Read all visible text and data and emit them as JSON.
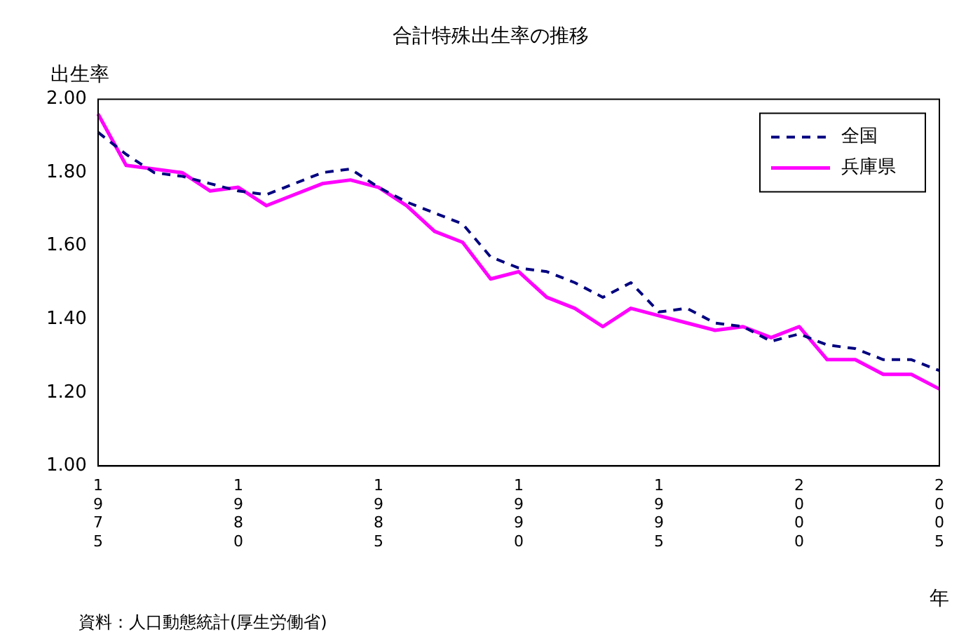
{
  "chart_data": {
    "type": "line",
    "title": "合計特殊出生率の推移",
    "ylabel": "出生率",
    "xlabel": "年",
    "categories": [
      "1975",
      null,
      null,
      null,
      null,
      "1980",
      null,
      null,
      null,
      null,
      "1985",
      null,
      null,
      null,
      null,
      "1990",
      null,
      null,
      null,
      null,
      "1995",
      null,
      null,
      null,
      null,
      "2000",
      null,
      null,
      null,
      null,
      "2005"
    ],
    "series": [
      {
        "name": "全国",
        "color": "#000080",
        "line_style": "dashed",
        "values": [
          1.91,
          1.85,
          1.8,
          1.79,
          1.77,
          1.75,
          1.74,
          1.77,
          1.8,
          1.81,
          1.76,
          1.72,
          1.69,
          1.66,
          1.57,
          1.54,
          1.53,
          1.5,
          1.46,
          1.5,
          1.42,
          1.43,
          1.39,
          1.38,
          1.34,
          1.36,
          1.33,
          1.32,
          1.29,
          1.29,
          1.26
        ]
      },
      {
        "name": "兵庫県",
        "color": "#ff00ff",
        "line_style": "solid",
        "values": [
          1.96,
          1.82,
          1.81,
          1.8,
          1.75,
          1.76,
          1.71,
          1.74,
          1.77,
          1.78,
          1.76,
          1.71,
          1.64,
          1.61,
          1.51,
          1.53,
          1.46,
          1.43,
          1.38,
          1.43,
          1.41,
          1.39,
          1.37,
          1.38,
          1.35,
          1.38,
          1.29,
          1.29,
          1.25,
          1.25,
          1.21
        ]
      }
    ],
    "ylim": [
      1,
      2
    ],
    "yticks": [
      {
        "value": 1,
        "label": "1.00"
      },
      {
        "value": 1.2,
        "label": "1.20"
      },
      {
        "value": 1.4,
        "label": "1.40"
      },
      {
        "value": 1.6,
        "label": "1.60"
      },
      {
        "value": 1.8,
        "label": "1.80"
      },
      {
        "value": 2,
        "label": "2.00"
      }
    ],
    "grid": false,
    "legend": "top right",
    "marker": "none",
    "annotations": [
      "資料：人口動態統計(厚生労働省)"
    ]
  }
}
